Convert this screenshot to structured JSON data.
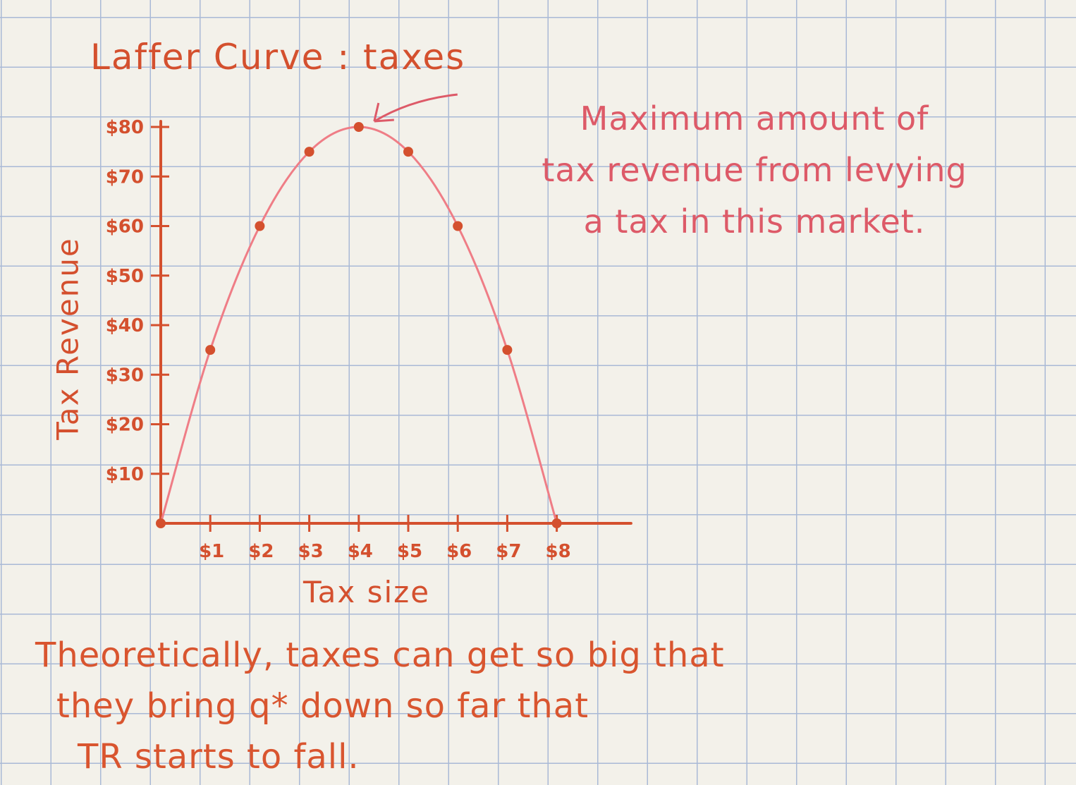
{
  "chart_data": {
    "type": "line",
    "title": "Laffer Curve : taxes",
    "xlabel": "Tax size",
    "ylabel": "Tax Revenue",
    "x_ticks": [
      "$1",
      "$2",
      "$3",
      "$4",
      "$5",
      "$6",
      "$7",
      "$8"
    ],
    "y_ticks": [
      "$10",
      "$20",
      "$30",
      "$40",
      "$50",
      "$60",
      "$70",
      "$80"
    ],
    "xlim": [
      0,
      9.5
    ],
    "ylim": [
      0,
      80
    ],
    "grid": true,
    "series": [
      {
        "x": [
          0,
          1,
          2,
          3,
          4,
          5,
          6,
          7,
          8
        ],
        "y": [
          0,
          35,
          60,
          75,
          80,
          75,
          60,
          35,
          0
        ]
      }
    ],
    "annotation": {
      "lines": [
        "Maximum amount of",
        "tax revenue from levying",
        "a tax in this market."
      ],
      "points_to": {
        "x": 4,
        "y": 80
      }
    },
    "note": {
      "lines": [
        "Theoretically, taxes can get so big that",
        "they bring q* down so far that",
        "TR starts to fall."
      ]
    }
  },
  "colors": {
    "axis": "#d4502e",
    "curve": "#ef7d86",
    "points": "#d4502e",
    "annotation": "#dd5a68",
    "grid": "#a9b9d6"
  }
}
